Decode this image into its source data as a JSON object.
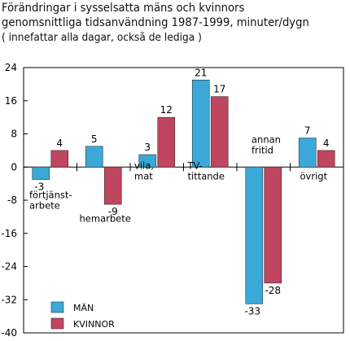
{
  "chart_data": {
    "type": "bar",
    "title": "Förändringar i sysselsatta mäns och kvinnors",
    "subtitle": "genomsnittliga tidsanvändning 1987-1999, minuter/dygn",
    "note": "( innefattar alla dagar, också de lediga )",
    "categories": [
      [
        "förtjänst-",
        "arbete"
      ],
      [
        "",
        "hemarbete"
      ],
      [
        "vila,",
        "mat"
      ],
      [
        "TV-",
        "tittande"
      ],
      [
        "annan",
        "fritid"
      ],
      [
        "",
        "övrigt"
      ]
    ],
    "series": [
      {
        "name": "MÄN",
        "color": "#3aa9d8",
        "values": [
          -3,
          5,
          3,
          21,
          -33,
          7
        ]
      },
      {
        "name": "KVINNOR",
        "color": "#c0455e",
        "values": [
          4,
          -9,
          12,
          17,
          -28,
          4
        ]
      }
    ],
    "ylim": [
      -40,
      24
    ],
    "yticks": [
      "24",
      "16",
      "8",
      "0",
      "-8",
      "-16",
      "-24",
      "-32",
      "-40"
    ],
    "grid": false,
    "legend_position": "bottom-left"
  }
}
